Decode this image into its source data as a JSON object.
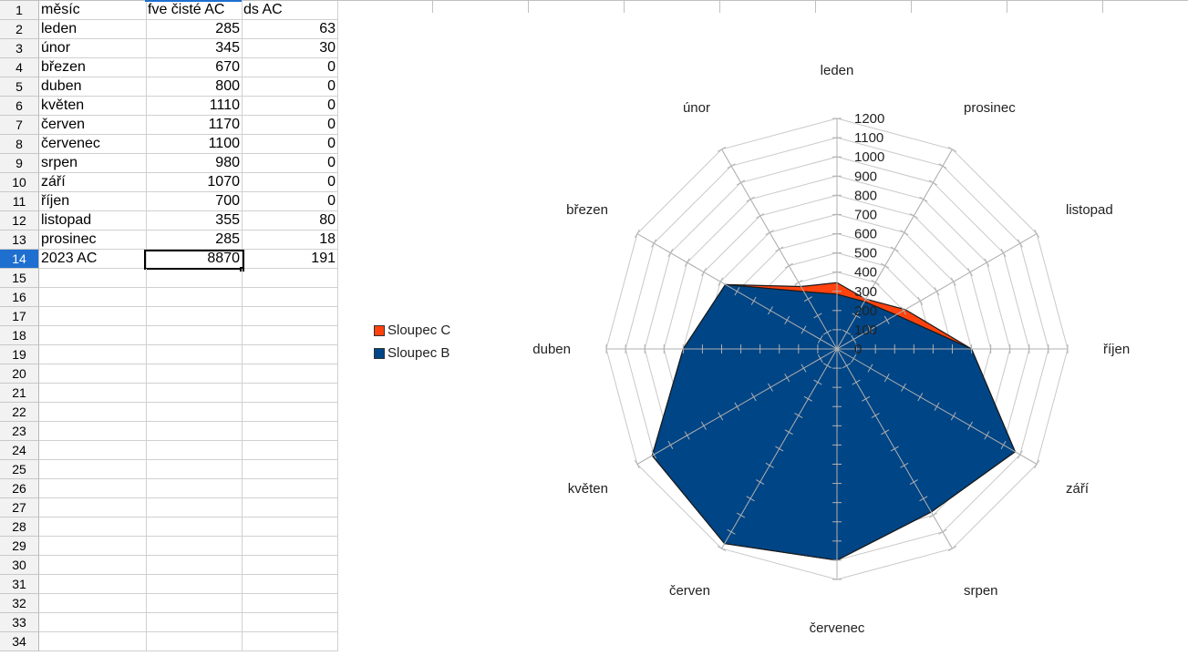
{
  "sheet": {
    "headers": {
      "month": "měsíc",
      "fve": "fve čisté AC",
      "ds": "ds AC"
    },
    "rows": [
      {
        "num": "1"
      },
      {
        "num": "2",
        "month": "leden",
        "fve": "285",
        "ds": "63"
      },
      {
        "num": "3",
        "month": "únor",
        "fve": "345",
        "ds": "30"
      },
      {
        "num": "4",
        "month": "březen",
        "fve": "670",
        "ds": "0"
      },
      {
        "num": "5",
        "month": "duben",
        "fve": "800",
        "ds": "0"
      },
      {
        "num": "6",
        "month": "květen",
        "fve": "1110",
        "ds": "0"
      },
      {
        "num": "7",
        "month": "červen",
        "fve": "1170",
        "ds": "0"
      },
      {
        "num": "8",
        "month": "červenec",
        "fve": "1100",
        "ds": "0"
      },
      {
        "num": "9",
        "month": "srpen",
        "fve": "980",
        "ds": "0"
      },
      {
        "num": "10",
        "month": "září",
        "fve": "1070",
        "ds": "0"
      },
      {
        "num": "11",
        "month": "říjen",
        "fve": "700",
        "ds": "0"
      },
      {
        "num": "12",
        "month": "listopad",
        "fve": "355",
        "ds": "80"
      },
      {
        "num": "13",
        "month": "prosinec",
        "fve": "285",
        "ds": "18"
      },
      {
        "num": "14",
        "month": "2023 AC",
        "fve": "8870",
        "ds": "191"
      }
    ],
    "empty_rows": [
      "15",
      "16",
      "17",
      "18",
      "19",
      "20",
      "21",
      "22",
      "23",
      "24",
      "25",
      "26",
      "27",
      "28",
      "29",
      "30",
      "31",
      "32",
      "33",
      "34"
    ],
    "active_row": "14",
    "colors": {
      "row_header_active": "#1e6fd0",
      "selection_border": "#000000"
    }
  },
  "chart_data": {
    "type": "radar",
    "categories": [
      "leden",
      "prosinec",
      "listopad",
      "říjen",
      "září",
      "srpen",
      "červenec",
      "červen",
      "květen",
      "duben",
      "březen",
      "únor"
    ],
    "series": [
      {
        "name": "Sloupec C",
        "color": "#ff420e",
        "values": [
          345,
          300,
          410,
          700,
          1070,
          980,
          1100,
          1170,
          1110,
          800,
          670,
          375
        ]
      },
      {
        "name": "Sloupec B",
        "color": "#004586",
        "values": [
          285,
          285,
          355,
          700,
          1070,
          980,
          1100,
          1170,
          1110,
          800,
          670,
          345
        ]
      }
    ],
    "ticks": [
      "0",
      "100",
      "200",
      "300",
      "400",
      "500",
      "600",
      "700",
      "800",
      "900",
      "1000",
      "1100",
      "1200"
    ],
    "rlim": [
      0,
      1200
    ],
    "legend": "left",
    "grid": true
  }
}
